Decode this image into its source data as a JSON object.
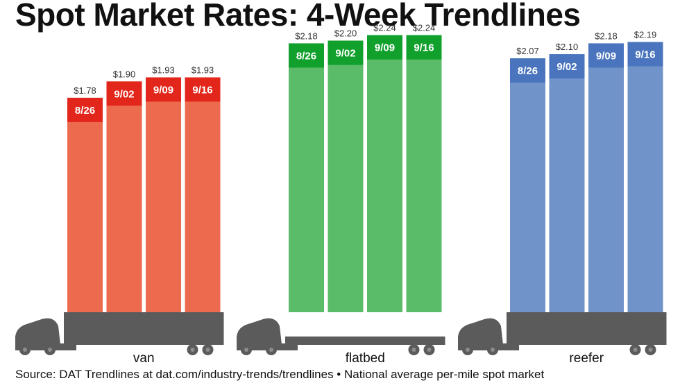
{
  "title": "Spot Market Rates: 4-Week Trendlines",
  "source": "Source: DAT Trendlines at dat.com/industry-trends/trendlines • National average per-mile spot market",
  "chart_data": {
    "type": "bar",
    "ylim": [
      0,
      2.32
    ],
    "groups": [
      {
        "name": "van",
        "color": "#EC6A4E",
        "label_color": "#E3261B",
        "weeks": [
          "8/26",
          "9/02",
          "9/09",
          "9/16"
        ],
        "values": [
          1.78,
          1.9,
          1.93,
          1.93
        ],
        "value_labels": [
          "$1.78",
          "$1.90",
          "$1.93",
          "$1.93"
        ]
      },
      {
        "name": "flatbed",
        "color": "#5ABB68",
        "label_color": "#12A02D",
        "weeks": [
          "8/26",
          "9/02",
          "9/09",
          "9/16"
        ],
        "values": [
          2.18,
          2.2,
          2.24,
          2.24
        ],
        "value_labels": [
          "$2.18",
          "$2.20",
          "$2.24",
          "$2.24"
        ]
      },
      {
        "name": "reefer",
        "color": "#7094C9",
        "label_color": "#4A75BE",
        "weeks": [
          "8/26",
          "9/02",
          "9/09",
          "9/16"
        ],
        "values": [
          2.07,
          2.1,
          2.18,
          2.19
        ],
        "value_labels": [
          "$2.07",
          "$2.10",
          "$2.18",
          "$2.19"
        ]
      }
    ]
  }
}
